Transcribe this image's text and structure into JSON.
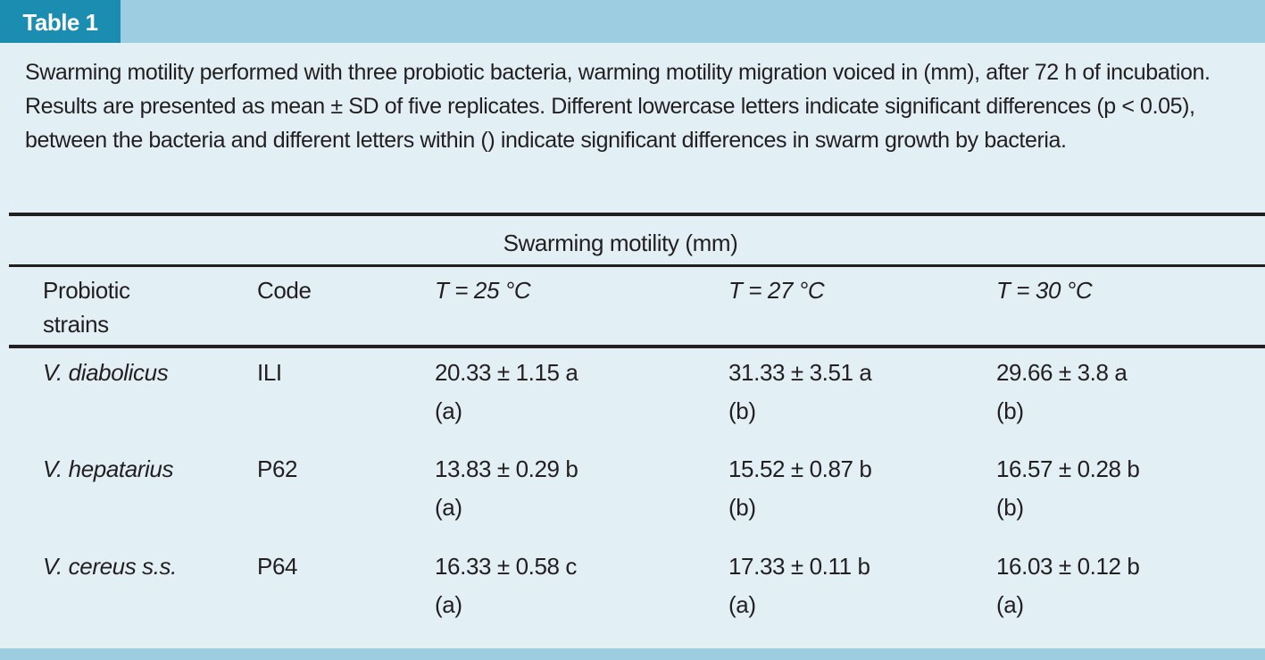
{
  "header": {
    "label": "Table 1",
    "caption": "Swarming motility performed with three probiotic bacteria, warming motility migration voiced in (mm), after 72 h of incubation. Results are presented as mean ± SD of five replicates. Different lowercase letters indicate significant differences (p < 0.05), between the bacteria and different letters within () indicate significant differences in swarm growth by bacteria."
  },
  "table": {
    "group_header": "Swarming motility (mm)",
    "columns": [
      "Probiotic strains",
      "Code",
      "T = 25 °C",
      "T = 27 °C",
      "T = 30 °C"
    ],
    "rows": [
      {
        "strain": "V. diabolicus",
        "code": "ILI",
        "values": [
          {
            "mean": "20.33 ± 1.15 a",
            "group": "(a)"
          },
          {
            "mean": "31.33 ± 3.51 a",
            "group": "(b)"
          },
          {
            "mean": "29.66 ± 3.8 a",
            "group": "(b)"
          }
        ]
      },
      {
        "strain": "V. hepatarius",
        "code": "P62",
        "values": [
          {
            "mean": "13.83 ± 0.29 b",
            "group": "(a)"
          },
          {
            "mean": "15.52 ± 0.87 b",
            "group": "(b)"
          },
          {
            "mean": "16.57 ± 0.28 b",
            "group": "(b)"
          }
        ]
      },
      {
        "strain": "V. cereus s.s.",
        "code": "P64",
        "values": [
          {
            "mean": "16.33 ± 0.58 c",
            "group": "(a)"
          },
          {
            "mean": "17.33 ± 0.11 b",
            "group": "(a)"
          },
          {
            "mean": "16.03 ± 0.12 b",
            "group": "(a)"
          }
        ]
      }
    ]
  }
}
